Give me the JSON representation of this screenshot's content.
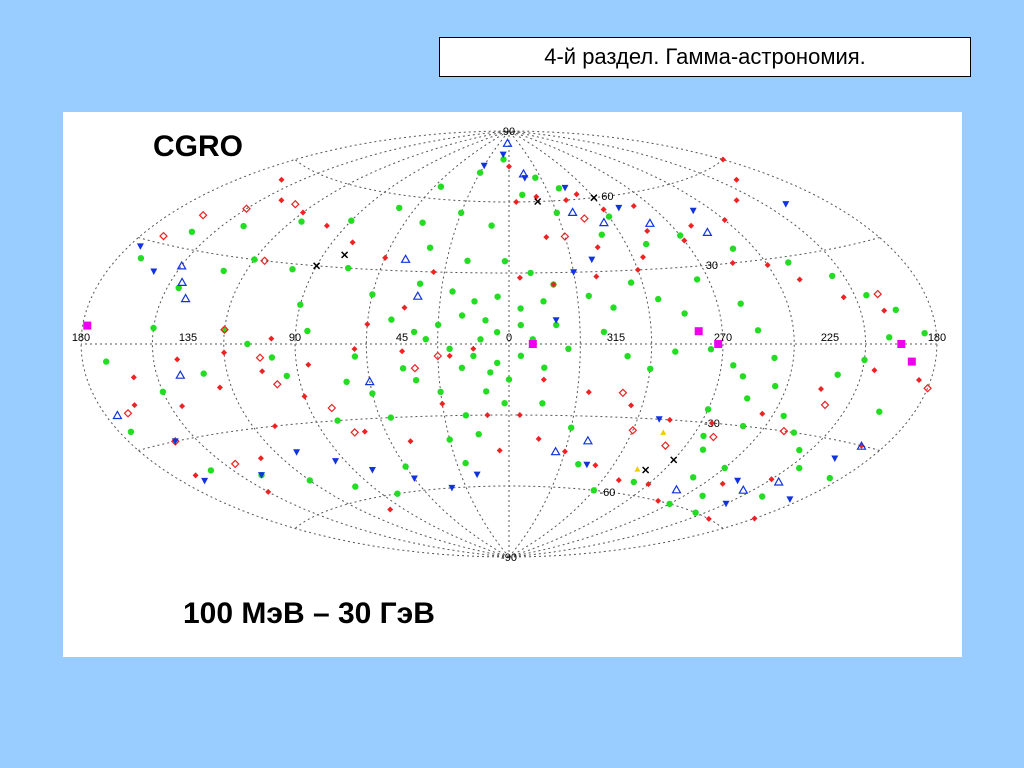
{
  "slide": {
    "title": "4-й раздел. Гамма-астрономия.",
    "colors": {
      "background": "#99ccff",
      "panel": "#ffffff"
    }
  },
  "chart_data": {
    "type": "scatter",
    "projection": "aitoff-galactic",
    "label_top_left": "CGRO",
    "label_bottom": "100 МэВ – 30 ГэВ",
    "grid": true,
    "x_tick_labels": [
      "180",
      "135",
      "90",
      "45",
      "0",
      "315",
      "270",
      "225",
      "180"
    ],
    "y_tick_labels": [
      "90",
      "60",
      "30",
      "-30",
      "-60",
      "-90"
    ],
    "series": [
      {
        "marker": "circle",
        "color": "#22dd22",
        "points": [
          [
            8,
            78
          ],
          [
            30,
            72
          ],
          [
            55,
            65
          ],
          [
            350,
            63
          ],
          [
            10,
            50
          ],
          [
            330,
            55
          ],
          [
            300,
            52
          ],
          [
            310,
            45
          ],
          [
            140,
            40
          ],
          [
            160,
            35
          ],
          [
            170,
            25
          ],
          [
            120,
            30
          ],
          [
            100,
            28
          ],
          [
            75,
            30
          ],
          [
            60,
            20
          ],
          [
            40,
            25
          ],
          [
            25,
            22
          ],
          [
            15,
            18
          ],
          [
            5,
            20
          ],
          [
            355,
            15
          ],
          [
            345,
            18
          ],
          [
            10,
            10
          ],
          [
            20,
            12
          ],
          [
            30,
            8
          ],
          [
            40,
            5
          ],
          [
            50,
            10
          ],
          [
            35,
            2
          ],
          [
            25,
            -2
          ],
          [
            15,
            -5
          ],
          [
            5,
            -8
          ],
          [
            355,
            -5
          ],
          [
            345,
            -10
          ],
          [
            350,
            2
          ],
          [
            340,
            8
          ],
          [
            335,
            -2
          ],
          [
            320,
            5
          ],
          [
            310,
            -5
          ],
          [
            300,
            -10
          ],
          [
            290,
            -3
          ],
          [
            280,
            5
          ],
          [
            275,
            -2
          ],
          [
            265,
            -8
          ],
          [
            260,
            -12
          ],
          [
            255,
            -20
          ],
          [
            245,
            -15
          ],
          [
            235,
            -25
          ],
          [
            225,
            -30
          ],
          [
            215,
            -35
          ],
          [
            205,
            -40
          ],
          [
            195,
            -20
          ],
          [
            190,
            -5
          ],
          [
            185,
            3
          ],
          [
            195,
            10
          ],
          [
            205,
            15
          ],
          [
            215,
            22
          ],
          [
            230,
            28
          ],
          [
            250,
            35
          ],
          [
            270,
            42
          ],
          [
            100,
            -5
          ],
          [
            110,
            0
          ],
          [
            120,
            5
          ],
          [
            130,
            -10
          ],
          [
            150,
            -15
          ],
          [
            170,
            -5
          ],
          [
            175,
            -25
          ],
          [
            160,
            -40
          ],
          [
            140,
            -45
          ],
          [
            120,
            -50
          ],
          [
            100,
            -55
          ],
          [
            80,
            -60
          ],
          [
            60,
            -50
          ],
          [
            30,
            -40
          ],
          [
            20,
            -30
          ],
          [
            10,
            -20
          ],
          [
            0,
            -15
          ],
          [
            20,
            -10
          ],
          [
            40,
            -15
          ],
          [
            60,
            -20
          ],
          [
            80,
            -30
          ],
          [
            30,
            -20
          ],
          [
            45,
            -10
          ],
          [
            65,
            -5
          ],
          [
            70,
            -15
          ],
          [
            55,
            -30
          ],
          [
            345,
            -25
          ],
          [
            330,
            -35
          ],
          [
            320,
            -50
          ],
          [
            300,
            -60
          ],
          [
            280,
            -55
          ],
          [
            260,
            -40
          ],
          [
            250,
            -30
          ],
          [
            240,
            -45
          ],
          [
            230,
            -55
          ],
          [
            215,
            -60
          ],
          [
            200,
            -50
          ],
          [
            185,
            -40
          ],
          [
            90,
            15
          ],
          [
            85,
            5
          ],
          [
            95,
            -12
          ],
          [
            5,
            5
          ],
          [
            355,
            8
          ],
          [
            12,
            2
          ],
          [
            8,
            -12
          ],
          [
            2,
            -25
          ],
          [
            15,
            -38
          ],
          [
            25,
            -50
          ],
          [
            2,
            35
          ],
          [
            350,
            30
          ],
          [
            340,
            25
          ],
          [
            325,
            20
          ],
          [
            315,
            15
          ],
          [
            305,
            25
          ],
          [
            295,
            18
          ],
          [
            285,
            12
          ],
          [
            270,
            -25
          ],
          [
            265,
            -35
          ],
          [
            250,
            -50
          ],
          [
            240,
            -60
          ],
          [
            220,
            -10
          ],
          [
            210,
            -5
          ],
          [
            200,
            2
          ],
          [
            150,
            5
          ],
          [
            145,
            18
          ],
          [
            130,
            25
          ],
          [
            115,
            45
          ],
          [
            90,
            48
          ],
          [
            70,
            55
          ],
          [
            50,
            50
          ],
          [
            40,
            40
          ],
          [
            20,
            35
          ],
          [
            30,
            55
          ],
          [
            335,
            70
          ],
          [
            320,
            65
          ],
          [
            290,
            40
          ],
          [
            275,
            25
          ],
          [
            260,
            15
          ],
          [
            255,
            5
          ],
          [
            248,
            -5
          ]
        ]
      },
      {
        "marker": "diamond",
        "color": "#ee2222",
        "points": [
          [
            0,
            75
          ],
          [
            355,
            60
          ],
          [
            340,
            62
          ],
          [
            320,
            60
          ],
          [
            310,
            62
          ],
          [
            300,
            55
          ],
          [
            285,
            45
          ],
          [
            270,
            40
          ],
          [
            255,
            30
          ],
          [
            240,
            28
          ],
          [
            230,
            22
          ],
          [
            215,
            15
          ],
          [
            200,
            10
          ],
          [
            35,
            30
          ],
          [
            60,
            35
          ],
          [
            80,
            40
          ],
          [
            100,
            45
          ],
          [
            120,
            48
          ],
          [
            140,
            50
          ],
          [
            160,
            55
          ],
          [
            180,
            60
          ],
          [
            200,
            55
          ],
          [
            220,
            50
          ],
          [
            240,
            45
          ],
          [
            260,
            45
          ],
          [
            280,
            55
          ],
          [
            300,
            30
          ],
          [
            320,
            28
          ],
          [
            340,
            25
          ],
          [
            355,
            28
          ],
          [
            15,
            -2
          ],
          [
            25,
            -5
          ],
          [
            45,
            -3
          ],
          [
            65,
            -2
          ],
          [
            85,
            -8
          ],
          [
            105,
            -10
          ],
          [
            125,
            -15
          ],
          [
            145,
            -20
          ],
          [
            165,
            -18
          ],
          [
            185,
            -10
          ],
          [
            205,
            -8
          ],
          [
            225,
            -15
          ],
          [
            245,
            -25
          ],
          [
            265,
            -30
          ],
          [
            285,
            -30
          ],
          [
            305,
            -25
          ],
          [
            325,
            -20
          ],
          [
            345,
            -15
          ],
          [
            355,
            -30
          ],
          [
            345,
            -40
          ],
          [
            330,
            -45
          ],
          [
            310,
            -50
          ],
          [
            290,
            -55
          ],
          [
            270,
            -55
          ],
          [
            250,
            -60
          ],
          [
            230,
            -50
          ],
          [
            210,
            -45
          ],
          [
            190,
            -30
          ],
          [
            170,
            -40
          ],
          [
            150,
            -50
          ],
          [
            130,
            -40
          ],
          [
            110,
            -30
          ],
          [
            90,
            -20
          ],
          [
            70,
            -35
          ],
          [
            50,
            -40
          ],
          [
            30,
            -25
          ],
          [
            10,
            -30
          ],
          [
            5,
            -45
          ],
          [
            160,
            -10
          ],
          [
            140,
            -5
          ],
          [
            120,
            -3
          ],
          [
            100,
            2
          ],
          [
            60,
            8
          ],
          [
            45,
            15
          ],
          [
            340,
            45
          ],
          [
            315,
            40
          ],
          [
            295,
            35
          ],
          [
            200,
            -60
          ],
          [
            180,
            -55
          ],
          [
            100,
            -65
          ]
        ]
      },
      {
        "marker": "diamond-open",
        "color": "#ee2222",
        "points": [
          [
            130,
            50
          ],
          [
            150,
            45
          ],
          [
            165,
            40
          ],
          [
            170,
            32
          ],
          [
            115,
            30
          ],
          [
            120,
            5
          ],
          [
            105,
            -5
          ],
          [
            100,
            -15
          ],
          [
            80,
            -25
          ],
          [
            75,
            -35
          ],
          [
            40,
            -10
          ],
          [
            30,
            -5
          ],
          [
            310,
            -20
          ],
          [
            300,
            -35
          ],
          [
            280,
            -40
          ],
          [
            260,
            -35
          ],
          [
            230,
            -30
          ],
          [
            220,
            -20
          ],
          [
            330,
            45
          ],
          [
            315,
            52
          ],
          [
            200,
            15
          ],
          [
            180,
            -12
          ],
          [
            170,
            -20
          ],
          [
            160,
            -30
          ],
          [
            145,
            -40
          ]
        ]
      },
      {
        "marker": "triangle-down",
        "color": "#1133dd",
        "points": [
          [
            30,
            75
          ],
          [
            10,
            80
          ],
          [
            345,
            70
          ],
          [
            315,
            65
          ],
          [
            290,
            55
          ],
          [
            250,
            50
          ],
          [
            200,
            45
          ],
          [
            175,
            28
          ],
          [
            160,
            22
          ],
          [
            340,
            10
          ],
          [
            330,
            30
          ],
          [
            320,
            35
          ],
          [
            110,
            -40
          ],
          [
            95,
            -45
          ],
          [
            80,
            -50
          ],
          [
            60,
            -55
          ],
          [
            40,
            -60
          ],
          [
            20,
            -55
          ],
          [
            140,
            -45
          ],
          [
            160,
            -30
          ],
          [
            170,
            -42
          ],
          [
            185,
            -48
          ],
          [
            210,
            -55
          ],
          [
            195,
            -35
          ],
          [
            225,
            -48
          ],
          [
            315,
            -50
          ],
          [
            290,
            -30
          ]
        ]
      },
      {
        "marker": "triangle-open",
        "color": "#1133dd",
        "points": [
          [
            5,
            85
          ],
          [
            345,
            72
          ],
          [
            320,
            55
          ],
          [
            305,
            50
          ],
          [
            280,
            48
          ],
          [
            255,
            42
          ],
          [
            150,
            25
          ],
          [
            145,
            20
          ],
          [
            140,
            15
          ],
          [
            50,
            35
          ],
          [
            40,
            20
          ],
          [
            60,
            -15
          ],
          [
            140,
            -10
          ],
          [
            175,
            -20
          ],
          [
            190,
            -30
          ],
          [
            205,
            -45
          ],
          [
            215,
            -50
          ],
          [
            250,
            -55
          ],
          [
            320,
            -40
          ],
          [
            335,
            -45
          ]
        ]
      },
      {
        "marker": "x-cross",
        "color": "#000000",
        "points": [
          [
            300,
            60
          ],
          [
            340,
            60
          ],
          [
            90,
            30
          ],
          [
            80,
            35
          ],
          [
            280,
            -50
          ],
          [
            270,
            -45
          ]
        ]
      },
      {
        "marker": "square",
        "color": "#ee00ee",
        "points": [
          [
            280,
            5
          ],
          [
            272,
            0
          ],
          [
            195,
            0
          ],
          [
            190,
            -5
          ],
          [
            178,
            5
          ],
          [
            350,
            0
          ]
        ]
      },
      {
        "marker": "triangle-small",
        "color": "#eecc00",
        "points": [
          [
            285,
            -35
          ],
          [
            285,
            -50
          ]
        ]
      }
    ]
  }
}
